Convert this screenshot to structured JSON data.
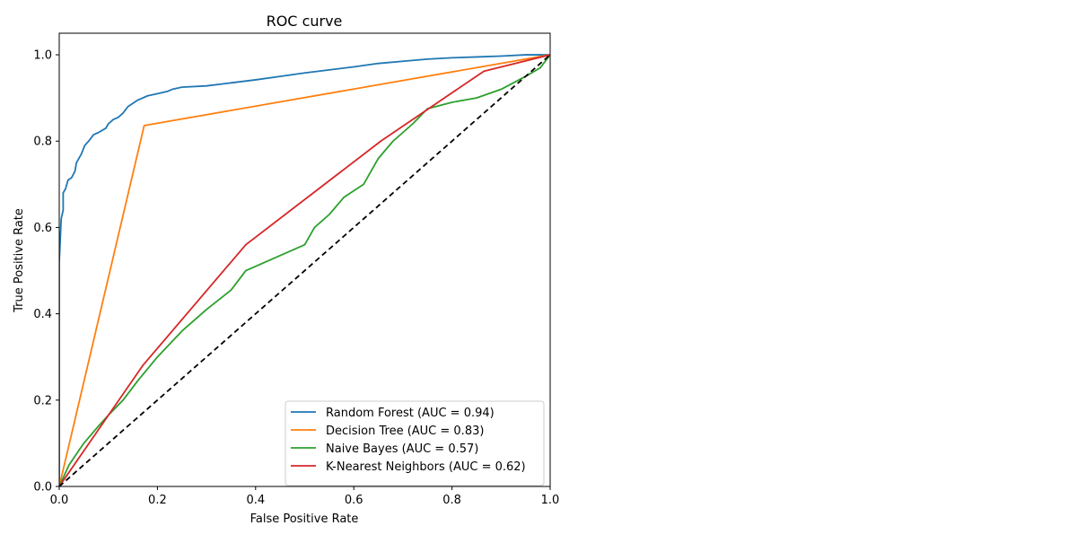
{
  "chart_data": {
    "type": "line",
    "title": "ROC curve",
    "xlabel": "False Positive Rate",
    "ylabel": "True Positive Rate",
    "xlim": [
      0.0,
      1.0
    ],
    "ylim": [
      0.0,
      1.05
    ],
    "xticks": [
      "0.0",
      "0.2",
      "0.4",
      "0.6",
      "0.8",
      "1.0"
    ],
    "yticks": [
      "0.0",
      "0.2",
      "0.4",
      "0.6",
      "0.8",
      "1.0"
    ],
    "grid": false,
    "legend_position": "lower-right",
    "series": [
      {
        "name": "Random Forest (AUC = 0.94)",
        "color": "#1f77b4",
        "x": [
          0.0,
          0.0,
          0.004,
          0.008,
          0.008,
          0.013,
          0.018,
          0.025,
          0.032,
          0.035,
          0.045,
          0.052,
          0.06,
          0.07,
          0.08,
          0.095,
          0.1,
          0.11,
          0.12,
          0.13,
          0.14,
          0.16,
          0.18,
          0.2,
          0.22,
          0.23,
          0.25,
          0.3,
          0.35,
          0.4,
          0.45,
          0.5,
          0.55,
          0.6,
          0.65,
          0.7,
          0.75,
          0.8,
          0.85,
          0.9,
          0.95,
          1.0
        ],
        "y": [
          0.0,
          0.52,
          0.62,
          0.64,
          0.68,
          0.69,
          0.71,
          0.715,
          0.73,
          0.75,
          0.77,
          0.79,
          0.8,
          0.815,
          0.82,
          0.83,
          0.84,
          0.85,
          0.855,
          0.865,
          0.88,
          0.895,
          0.905,
          0.91,
          0.915,
          0.92,
          0.925,
          0.928,
          0.935,
          0.942,
          0.95,
          0.958,
          0.965,
          0.972,
          0.98,
          0.985,
          0.99,
          0.993,
          0.995,
          0.997,
          1.0,
          1.0
        ]
      },
      {
        "name": "Decision Tree (AUC = 0.83)",
        "color": "#ff7f0e",
        "x": [
          0.0,
          0.173,
          1.0
        ],
        "y": [
          0.0,
          0.836,
          1.0
        ]
      },
      {
        "name": "Naive Bayes (AUC = 0.57)",
        "color": "#2ca02c",
        "x": [
          0.0,
          0.02,
          0.05,
          0.08,
          0.1,
          0.13,
          0.16,
          0.2,
          0.25,
          0.3,
          0.35,
          0.38,
          0.42,
          0.46,
          0.5,
          0.52,
          0.55,
          0.58,
          0.62,
          0.65,
          0.68,
          0.72,
          0.75,
          0.8,
          0.85,
          0.9,
          0.95,
          0.98,
          1.0
        ],
        "y": [
          0.0,
          0.05,
          0.1,
          0.14,
          0.165,
          0.2,
          0.245,
          0.3,
          0.36,
          0.41,
          0.455,
          0.5,
          0.52,
          0.54,
          0.56,
          0.6,
          0.63,
          0.67,
          0.7,
          0.76,
          0.8,
          0.84,
          0.875,
          0.89,
          0.9,
          0.92,
          0.95,
          0.97,
          1.0
        ]
      },
      {
        "name": "K-Nearest Neighbors (AUC = 0.62)",
        "color": "#d62728",
        "x": [
          0.0,
          0.17,
          0.38,
          0.655,
          0.865,
          1.0
        ],
        "y": [
          0.0,
          0.28,
          0.56,
          0.8,
          0.962,
          1.0
        ]
      },
      {
        "name": "",
        "color": "#000000",
        "dashed": true,
        "x": [
          0.0,
          1.0
        ],
        "y": [
          0.0,
          1.0
        ]
      }
    ]
  }
}
